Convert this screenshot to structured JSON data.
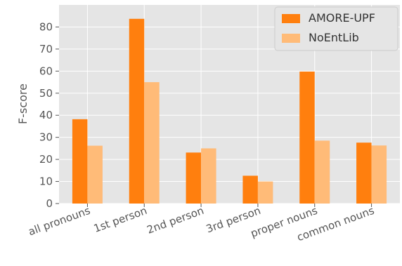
{
  "chart_data": {
    "type": "bar",
    "ylabel": "F-score",
    "xlabel": "",
    "ylim": [
      0,
      90
    ],
    "yticks": [
      0,
      10,
      20,
      30,
      40,
      50,
      60,
      70,
      80
    ],
    "grid": true,
    "legend_position": "top-right",
    "categories": [
      "all pronouns",
      "1st person",
      "2nd person",
      "3rd person",
      "proper nouns",
      "common nouns"
    ],
    "series": [
      {
        "name": "AMORE-UPF",
        "color": "#ff7f0e",
        "values": [
          38.2,
          83.7,
          23.1,
          12.6,
          59.8,
          27.6
        ]
      },
      {
        "name": "NoEntLib",
        "color": "#ffbb78",
        "values": [
          26.2,
          55.0,
          25.0,
          10.0,
          28.5,
          26.3
        ]
      }
    ]
  }
}
